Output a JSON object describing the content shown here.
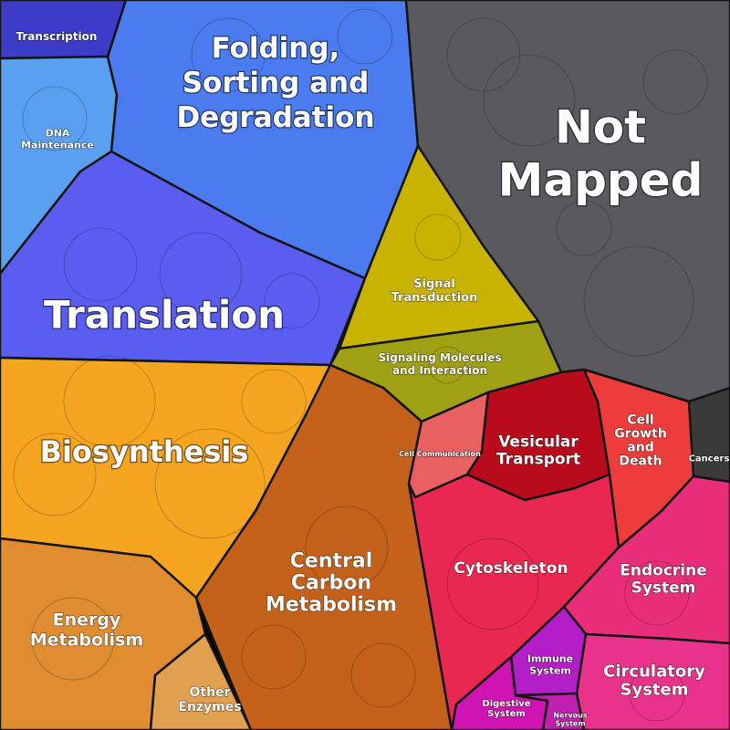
{
  "colors": {
    "transcription": "#3c3cc8",
    "dna_maintenance": "#5aa0f0",
    "folding": "#4a7cf0",
    "translation": "#5a5ef0",
    "not_mapped": "#5a5a5e",
    "signal_transduction": "#c8b400",
    "signaling_molecules": "#a0a014",
    "biosynthesis": "#f5a520",
    "central_carbon": "#c4621c",
    "energy_metabolism": "#e08c30",
    "other_enzymes": "#e0a050",
    "cell_communication": "#e86060",
    "vesicular_transport": "#b80c1c",
    "cell_growth": "#ec3c3c",
    "cancers": "#3a3a3a",
    "cytoskeleton": "#e82850",
    "endocrine": "#e82e78",
    "circulatory": "#e8328c",
    "immune": "#b41ec8",
    "digestive": "#d014b4",
    "nervous": "#c020b0"
  },
  "regions": {
    "transcription": "Transcription",
    "dna_maintenance": [
      "DNA",
      "Maintenance"
    ],
    "folding": [
      "Folding,",
      "Sorting and",
      "Degradation"
    ],
    "not_mapped": [
      "Not",
      "Mapped"
    ],
    "translation": "Translation",
    "signal_transduction": [
      "Signal",
      "Transduction"
    ],
    "signaling_molecules": [
      "Signaling Molecules",
      "and Interaction"
    ],
    "biosynthesis": "Biosynthesis",
    "cell_communication": "Cell Communication",
    "vesicular_transport": [
      "Vesicular",
      "Transport"
    ],
    "cell_growth": [
      "Cell",
      "Growth",
      "and",
      "Death"
    ],
    "cancers": "Cancers",
    "cytoskeleton": "Cytoskeleton",
    "central_carbon": [
      "Central",
      "Carbon",
      "Metabolism"
    ],
    "endocrine": [
      "Endocrine",
      "System"
    ],
    "energy_metabolism": [
      "Energy",
      "Metabolism"
    ],
    "immune": [
      "Immune",
      "System"
    ],
    "circulatory": [
      "Circulatory",
      "System"
    ],
    "other_enzymes": [
      "Other",
      "Enzymes"
    ],
    "digestive": [
      "Digestive",
      "System"
    ],
    "nervous": [
      "Nervous",
      "System"
    ]
  }
}
